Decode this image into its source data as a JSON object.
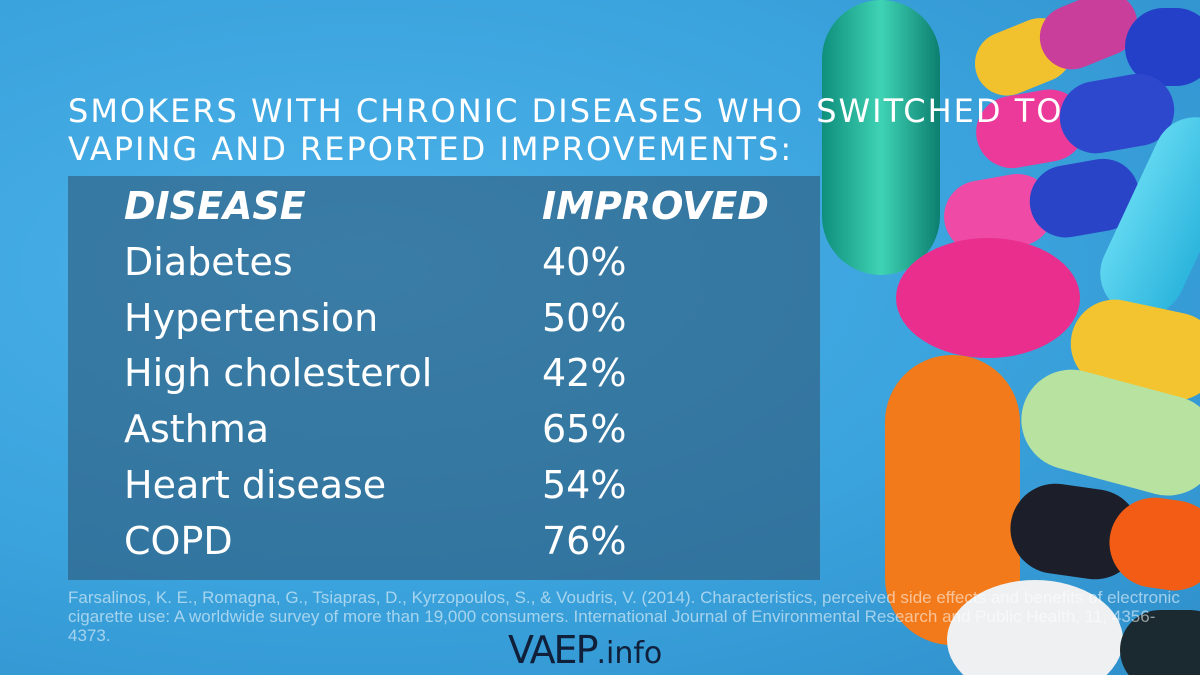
{
  "title": "SMOKERS WITH CHRONIC DISEASES WHO SWITCHED TO VAPING AND REPORTED IMPROVEMENTS:",
  "chart_data": {
    "type": "table",
    "columns": [
      "DISEASE",
      "IMPROVED"
    ],
    "rows": [
      {
        "disease": "Diabetes",
        "improved": "40%"
      },
      {
        "disease": "Hypertension",
        "improved": "50%"
      },
      {
        "disease": "High cholesterol",
        "improved": "42%"
      },
      {
        "disease": "Asthma",
        "improved": "65%"
      },
      {
        "disease": "Heart disease",
        "improved": "54%"
      },
      {
        "disease": "COPD",
        "improved": "76%"
      }
    ]
  },
  "source": "Farsalinos, K. E., Romagna, G., Tsiapras, D., Kyrzopoulos, S., & Voudris, V. (2014). Characteristics, perceived side effects and benefits of electronic cigarette use: A worldwide survey of more than 19,000 consumers. International Journal of Environmental Research and Public Health, 11, 4356-4373.",
  "logo": {
    "main": "VAEP",
    "suffix": ".info"
  },
  "colors": {
    "background": "#3aa2dc",
    "panel": "#2c506e",
    "text": "#ffffff"
  }
}
